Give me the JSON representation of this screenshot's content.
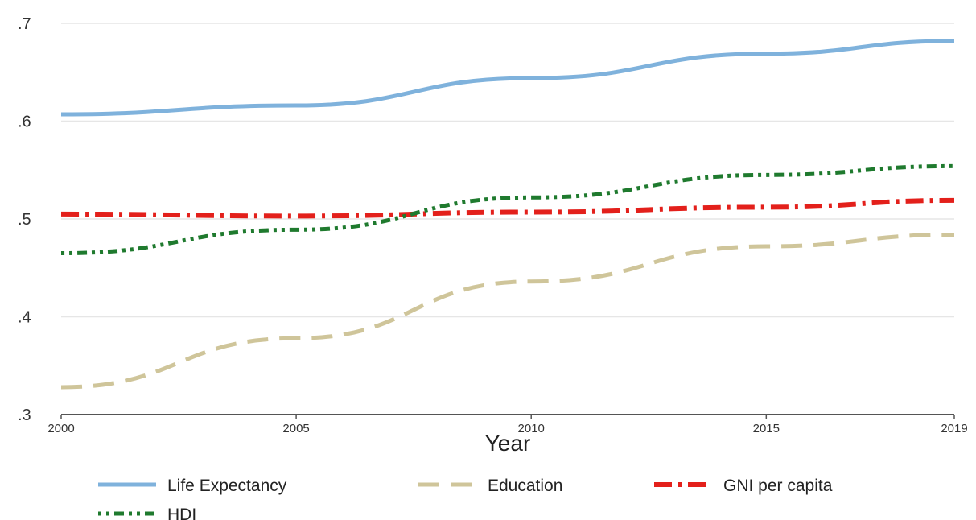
{
  "chart_data": {
    "type": "line",
    "title": "",
    "xlabel": "Year",
    "ylabel": "",
    "xlim": [
      2000,
      2019
    ],
    "ylim": [
      0.3,
      0.7
    ],
    "grid": true,
    "legend_position": "bottom",
    "x_ticks": [
      {
        "value": 2000,
        "label": "2000"
      },
      {
        "value": 2005,
        "label": "2005"
      },
      {
        "value": 2010,
        "label": "2010"
      },
      {
        "value": 2015,
        "label": "2015"
      },
      {
        "value": 2019,
        "label": "2019"
      }
    ],
    "y_ticks": [
      {
        "value": 0.3,
        "label": ".3"
      },
      {
        "value": 0.4,
        "label": ".4"
      },
      {
        "value": 0.5,
        "label": ".5"
      },
      {
        "value": 0.6,
        "label": ".6"
      },
      {
        "value": 0.7,
        "label": ".7"
      }
    ],
    "x": [
      2000,
      2005,
      2010,
      2015,
      2019
    ],
    "series": [
      {
        "name": "Life Expectancy",
        "values": [
          0.607,
          0.616,
          0.644,
          0.669,
          0.682
        ],
        "color": "#7fb2dc",
        "style": "solid"
      },
      {
        "name": "Education",
        "values": [
          0.328,
          0.378,
          0.436,
          0.472,
          0.484
        ],
        "color": "#cfc59a",
        "style": "dashed"
      },
      {
        "name": "GNI per capita",
        "values": [
          0.505,
          0.503,
          0.507,
          0.512,
          0.519
        ],
        "color": "#e3201b",
        "style": "dash-dot"
      },
      {
        "name": "HDI",
        "values": [
          0.465,
          0.489,
          0.522,
          0.545,
          0.554
        ],
        "color": "#1f7a2e",
        "style": "dotted-dash"
      }
    ]
  }
}
